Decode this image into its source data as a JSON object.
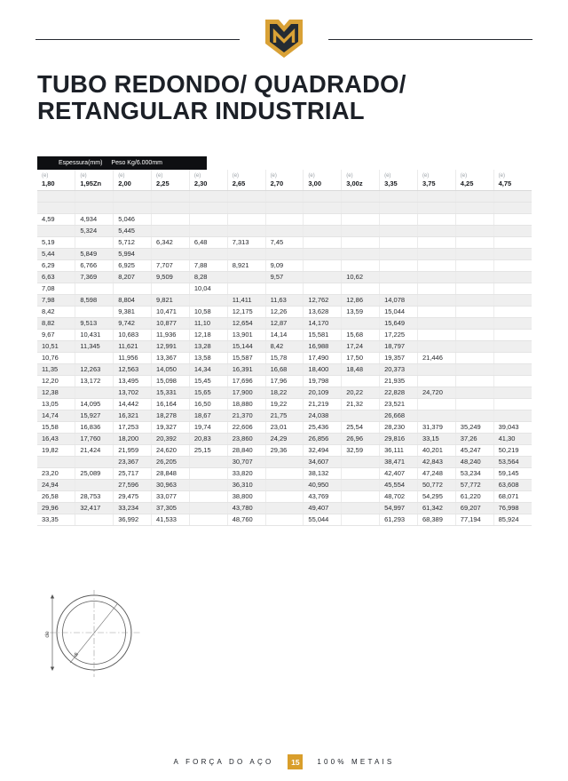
{
  "page": {
    "title_line1": "TUBO REDONDO/ QUADRADO/",
    "title_line2": "RETANGULAR INDUSTRIAL"
  },
  "colors": {
    "gold": "#D99E2B",
    "dark_navy": "#242b33",
    "table_header_bg": "#0e0f12",
    "stripe": "#efefef"
  },
  "table": {
    "bar_left": "Espessura(mm)",
    "bar_right": "Peso Kg/6.000mm",
    "e_label": "(e)",
    "columns": [
      "1,80",
      "1,95Zn",
      "2,00",
      "2,25",
      "2,30",
      "2,65",
      "2,70",
      "3,00",
      "3,00z",
      "3,35",
      "3,75",
      "4,25",
      "4,75"
    ],
    "rows": [
      [
        "",
        "",
        "",
        "",
        "",
        "",
        "",
        "",
        "",
        "",
        "",
        "",
        ""
      ],
      [
        "",
        "",
        "",
        "",
        "",
        "",
        "",
        "",
        "",
        "",
        "",
        "",
        ""
      ],
      [
        "4,59",
        "4,934",
        "5,046",
        "",
        "",
        "",
        "",
        "",
        "",
        "",
        "",
        "",
        ""
      ],
      [
        "",
        "5,324",
        "5,445",
        "",
        "",
        "",
        "",
        "",
        "",
        "",
        "",
        "",
        ""
      ],
      [
        "5,19",
        "",
        "5,712",
        "6,342",
        "6,48",
        "7,313",
        "7,45",
        "",
        "",
        "",
        "",
        "",
        ""
      ],
      [
        "5,44",
        "5,849",
        "5,994",
        "",
        "",
        "",
        "",
        "",
        "",
        "",
        "",
        "",
        ""
      ],
      [
        "6,29",
        "6,766",
        "6,925",
        "7,707",
        "7,88",
        "8,921",
        "9,09",
        "",
        "",
        "",
        "",
        "",
        ""
      ],
      [
        "6,63",
        "7,369",
        "8,207",
        "9,509",
        "8,28",
        "",
        "9,57",
        "",
        "10,62",
        "",
        "",
        "",
        ""
      ],
      [
        "7,08",
        "",
        "",
        "",
        "10,04",
        "",
        "",
        "",
        "",
        "",
        "",
        "",
        ""
      ],
      [
        "7,98",
        "8,598",
        "8,804",
        "9,821",
        "",
        "11,411",
        "11,63",
        "12,762",
        "12,86",
        "14,078",
        "",
        "",
        ""
      ],
      [
        "8,42",
        "",
        "9,381",
        "10,471",
        "10,58",
        "12,175",
        "12,26",
        "13,628",
        "13,59",
        "15,044",
        "",
        "",
        ""
      ],
      [
        "8,82",
        "9,513",
        "9,742",
        "10,877",
        "11,10",
        "12,654",
        "12,87",
        "14,170",
        "",
        "15,649",
        "",
        "",
        ""
      ],
      [
        "9,67",
        "10,431",
        "10,683",
        "11,936",
        "12,18",
        "13,901",
        "14,14",
        "15,581",
        "15,68",
        "17,225",
        "",
        "",
        ""
      ],
      [
        "10,51",
        "11,345",
        "11,621",
        "12,991",
        "13,28",
        "15,144",
        "8,42",
        "16,988",
        "17,24",
        "18,797",
        "",
        "",
        ""
      ],
      [
        "10,76",
        "",
        "11,956",
        "13,367",
        "13,58",
        "15,587",
        "15,78",
        "17,490",
        "17,50",
        "19,357",
        "21,446",
        "",
        ""
      ],
      [
        "11,35",
        "12,263",
        "12,563",
        "14,050",
        "14,34",
        "16,391",
        "16,68",
        "18,400",
        "18,48",
        "20,373",
        "",
        "",
        ""
      ],
      [
        "12,20",
        "13,172",
        "13,495",
        "15,098",
        "15,45",
        "17,696",
        "17,96",
        "19,798",
        "",
        "21,935",
        "",
        "",
        ""
      ],
      [
        "12,38",
        "",
        "13,702",
        "15,331",
        "15,65",
        "17,900",
        "18,22",
        "20,109",
        "20,22",
        "22,828",
        "24,720",
        "",
        ""
      ],
      [
        "13,05",
        "14,095",
        "14,442",
        "16,164",
        "16,50",
        "18,880",
        "19,22",
        "21,219",
        "21,32",
        "23,521",
        "",
        "",
        ""
      ],
      [
        "14,74",
        "15,927",
        "16,321",
        "18,278",
        "18,67",
        "21,370",
        "21,75",
        "24,038",
        "",
        "26,668",
        "",
        "",
        ""
      ],
      [
        "15,58",
        "16,836",
        "17,253",
        "19,327",
        "19,74",
        "22,606",
        "23,01",
        "25,436",
        "25,54",
        "28,230",
        "31,379",
        "35,249",
        "39,043"
      ],
      [
        "16,43",
        "17,760",
        "18,200",
        "20,392",
        "20,83",
        "23,860",
        "24,29",
        "26,856",
        "26,96",
        "29,816",
        "33,15",
        "37,26",
        "41,30"
      ],
      [
        "19,82",
        "21,424",
        "21,959",
        "24,620",
        "25,15",
        "28,840",
        "29,36",
        "32,494",
        "32,59",
        "36,111",
        "40,201",
        "45,247",
        "50,219"
      ],
      [
        "",
        "",
        "23,367",
        "26,205",
        "",
        "30,707",
        "",
        "34,607",
        "",
        "38,471",
        "42,843",
        "48,240",
        "53,564"
      ],
      [
        "23,20",
        "25,089",
        "25,717",
        "28,848",
        "",
        "33,820",
        "",
        "38,132",
        "",
        "42,407",
        "47,248",
        "53,234",
        "59,145"
      ],
      [
        "24,94",
        "",
        "27,596",
        "30,963",
        "",
        "36,310",
        "",
        "40,950",
        "",
        "45,554",
        "50,772",
        "57,772",
        "63,608"
      ],
      [
        "26,58",
        "28,753",
        "29,475",
        "33,077",
        "",
        "38,800",
        "",
        "43,769",
        "",
        "48,702",
        "54,295",
        "61,220",
        "68,071"
      ],
      [
        "29,96",
        "32,417",
        "33,234",
        "37,305",
        "",
        "43,780",
        "",
        "49,407",
        "",
        "54,997",
        "61,342",
        "69,207",
        "76,998"
      ],
      [
        "33,35",
        "",
        "36,992",
        "41,533",
        "",
        "48,760",
        "",
        "55,044",
        "",
        "61,293",
        "68,389",
        "77,194",
        "85,924"
      ]
    ]
  },
  "drawing": {
    "label_de": "de",
    "label_di": "di"
  },
  "footer": {
    "left": "A FORÇA DO AÇO",
    "page": "15",
    "right": "100% METAIS"
  }
}
